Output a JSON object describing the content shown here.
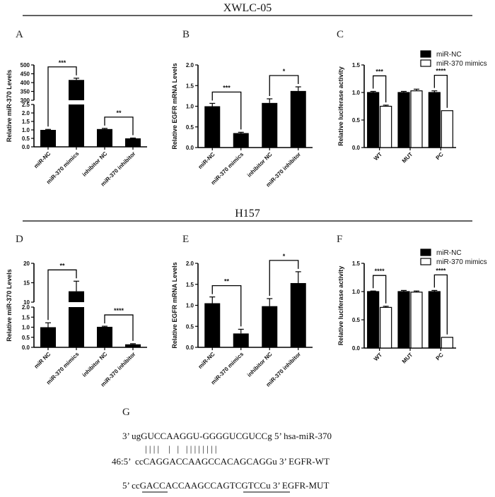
{
  "sections": [
    {
      "title": "XWLC-05"
    },
    {
      "title": "H157"
    }
  ],
  "panel_g_letter": "G",
  "sequences": {
    "mirna": "3’ ugGUCCAAGGU-GGGGUCGUCCg 5’ hsa-miR-370",
    "pairing": "| | | |    |   |   | | | | | | | |",
    "wt": "46:5’  ccCAGGACCAAGCCACAGCAGGu 3’ EGFR-WT",
    "mut": "5’ ccGACCACCAAGCCAGTCGTCCu 3’ EGFR-MUT"
  },
  "chart_data": [
    {
      "panel": "A",
      "type": "bar",
      "ylabel": "Relative miR-370 Levels",
      "y_axis_break": {
        "lower": [
          0,
          2.5
        ],
        "upper": [
          300,
          500
        ]
      },
      "yticks": [
        "0.0",
        "0.5",
        "1.0",
        "1.5",
        "2.0",
        "2.5",
        "300",
        "350",
        "400",
        "450",
        "500"
      ],
      "categories": [
        "miR-NC",
        "miR-370 mimics",
        "inhibitor NC",
        "miR-370 inhibitor"
      ],
      "values": [
        1.0,
        415,
        1.05,
        0.5
      ],
      "errors": [
        0.03,
        10,
        0.04,
        0.02
      ],
      "significance": [
        {
          "from": "miR-NC",
          "to": "miR-370 mimics",
          "label": "***"
        },
        {
          "from": "inhibitor NC",
          "to": "miR-370 inhibitor",
          "label": "**"
        }
      ]
    },
    {
      "panel": "B",
      "type": "bar",
      "ylabel": "Relative EGFR mRNA Levels",
      "ylim": [
        0,
        2.0
      ],
      "yticks": [
        "0.0",
        "0.5",
        "1.0",
        "1.5",
        "2.0"
      ],
      "categories": [
        "miR-NC",
        "miR-370 mimics",
        "inhibitor NC",
        "miR-370 inhibitor"
      ],
      "values": [
        1.0,
        0.35,
        1.08,
        1.37
      ],
      "errors": [
        0.07,
        0.02,
        0.1,
        0.1
      ],
      "significance": [
        {
          "from": "miR-NC",
          "to": "miR-370 mimics",
          "label": "***"
        },
        {
          "from": "inhibitor NC",
          "to": "miR-370 inhibitor",
          "label": "*"
        }
      ]
    },
    {
      "panel": "C",
      "type": "bar",
      "ylabel": "Relative luciferase activity",
      "ylim": [
        0,
        1.5
      ],
      "yticks": [
        "0.0",
        "0.5",
        "1.0",
        "1.5"
      ],
      "categories": [
        "WT",
        "MUT",
        "PC"
      ],
      "series": [
        {
          "name": "miR-NC",
          "color": "#000000",
          "values": [
            1.0,
            1.0,
            1.0
          ],
          "errors": [
            0.02,
            0.02,
            0.03
          ]
        },
        {
          "name": "miR-370 mimics",
          "color": "#ffffff",
          "values": [
            0.75,
            1.03,
            0.67
          ],
          "errors": [
            0.02,
            0.03,
            0.0
          ]
        }
      ],
      "significance": [
        {
          "group": "WT",
          "label": "***"
        },
        {
          "group": "PC",
          "label": "****"
        }
      ],
      "legend_position": "top-right"
    },
    {
      "panel": "D",
      "type": "bar",
      "ylabel": "Relative miR-370 Levels",
      "y_axis_break": {
        "lower": [
          0,
          2.0
        ],
        "upper": [
          10,
          20
        ]
      },
      "yticks": [
        "0.0",
        "0.5",
        "1.0",
        "1.5",
        "2.0",
        "10",
        "15",
        "20"
      ],
      "categories": [
        "miR NC",
        "miR-370 mimics",
        "inhibitor NC",
        "miR-370 inhibitor"
      ],
      "values": [
        1.0,
        12.8,
        1.02,
        0.15
      ],
      "errors": [
        0.22,
        2.6,
        0.03,
        0.03
      ],
      "significance": [
        {
          "from": "miR NC",
          "to": "miR-370 mimics",
          "label": "**"
        },
        {
          "from": "inhibitor NC",
          "to": "miR-370 inhibitor",
          "label": "****"
        }
      ]
    },
    {
      "panel": "E",
      "type": "bar",
      "ylabel": "Relative EGFR mRNA Levels",
      "ylim": [
        0,
        2.0
      ],
      "yticks": [
        "0.0",
        "0.5",
        "1.0",
        "1.5",
        "2.0"
      ],
      "categories": [
        "miR-NC",
        "miR-370 mimics",
        "inhibitor NC",
        "miR-370 inhibitor"
      ],
      "values": [
        1.05,
        0.33,
        0.98,
        1.53
      ],
      "errors": [
        0.15,
        0.1,
        0.18,
        0.27
      ],
      "significance": [
        {
          "from": "miR-NC",
          "to": "miR-370 mimics",
          "label": "**"
        },
        {
          "from": "inhibitor NC",
          "to": "miR-370 inhibitor",
          "label": "*"
        }
      ]
    },
    {
      "panel": "F",
      "type": "bar",
      "ylabel": "Relative luciferase activity",
      "ylim": [
        0,
        1.5
      ],
      "yticks": [
        "0.0",
        "0.5",
        "1.0",
        "1.5"
      ],
      "categories": [
        "WT",
        "MUT",
        "PC"
      ],
      "series": [
        {
          "name": "miR-NC",
          "color": "#000000",
          "values": [
            1.0,
            1.0,
            1.0
          ],
          "errors": [
            0.01,
            0.02,
            0.02
          ]
        },
        {
          "name": "miR-370 mimics",
          "color": "#ffffff",
          "values": [
            0.72,
            0.99,
            0.19
          ],
          "errors": [
            0.02,
            0.02,
            0.0
          ]
        }
      ],
      "significance": [
        {
          "group": "WT",
          "label": "****"
        },
        {
          "group": "PC",
          "label": "****"
        }
      ],
      "legend_position": "top-right"
    }
  ]
}
